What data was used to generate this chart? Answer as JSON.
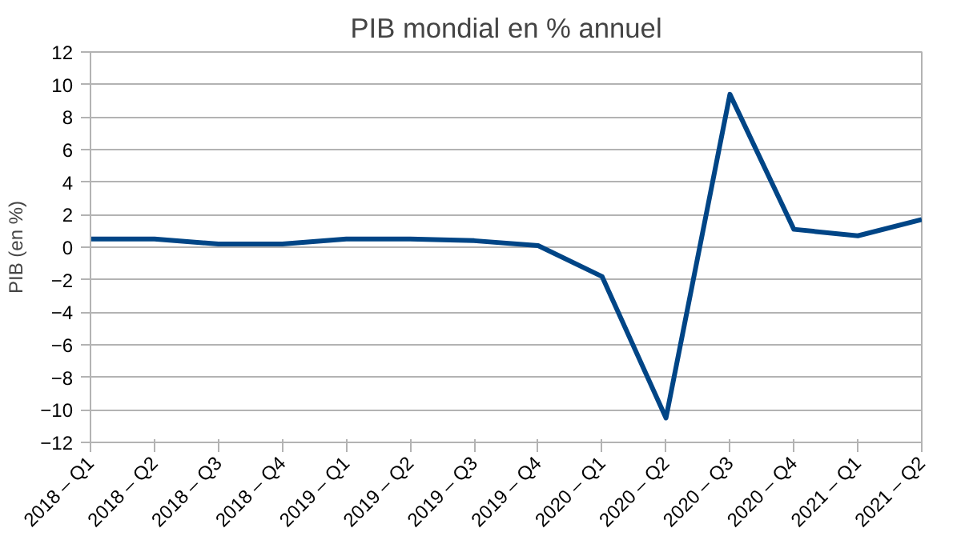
{
  "chart_data": {
    "type": "line",
    "title": "PIB mondial en % annuel",
    "ylabel": "PIB (en %)",
    "categories": [
      "2018 – Q1",
      "2018 – Q2",
      "2018 – Q3",
      "2018 – Q4",
      "2019 – Q1",
      "2019 – Q2",
      "2019 – Q3",
      "2019 – Q4",
      "2020 – Q1",
      "2020 – Q2",
      "2020 – Q3",
      "2020 – Q4",
      "2021 – Q1",
      "2021 – Q2"
    ],
    "series": [
      {
        "color": "#004586",
        "values": [
          0.5,
          0.5,
          0.2,
          0.2,
          0.5,
          0.5,
          0.4,
          0.1,
          -1.8,
          -10.5,
          9.4,
          1.1,
          0.7,
          1.7
        ]
      }
    ],
    "ylim": [
      -12,
      12
    ],
    "yticks": [
      -12,
      -10,
      -8,
      -6,
      -4,
      -2,
      0,
      2,
      4,
      6,
      8,
      10,
      12
    ],
    "grid": "y",
    "marker": "none",
    "line_style": "solid"
  }
}
